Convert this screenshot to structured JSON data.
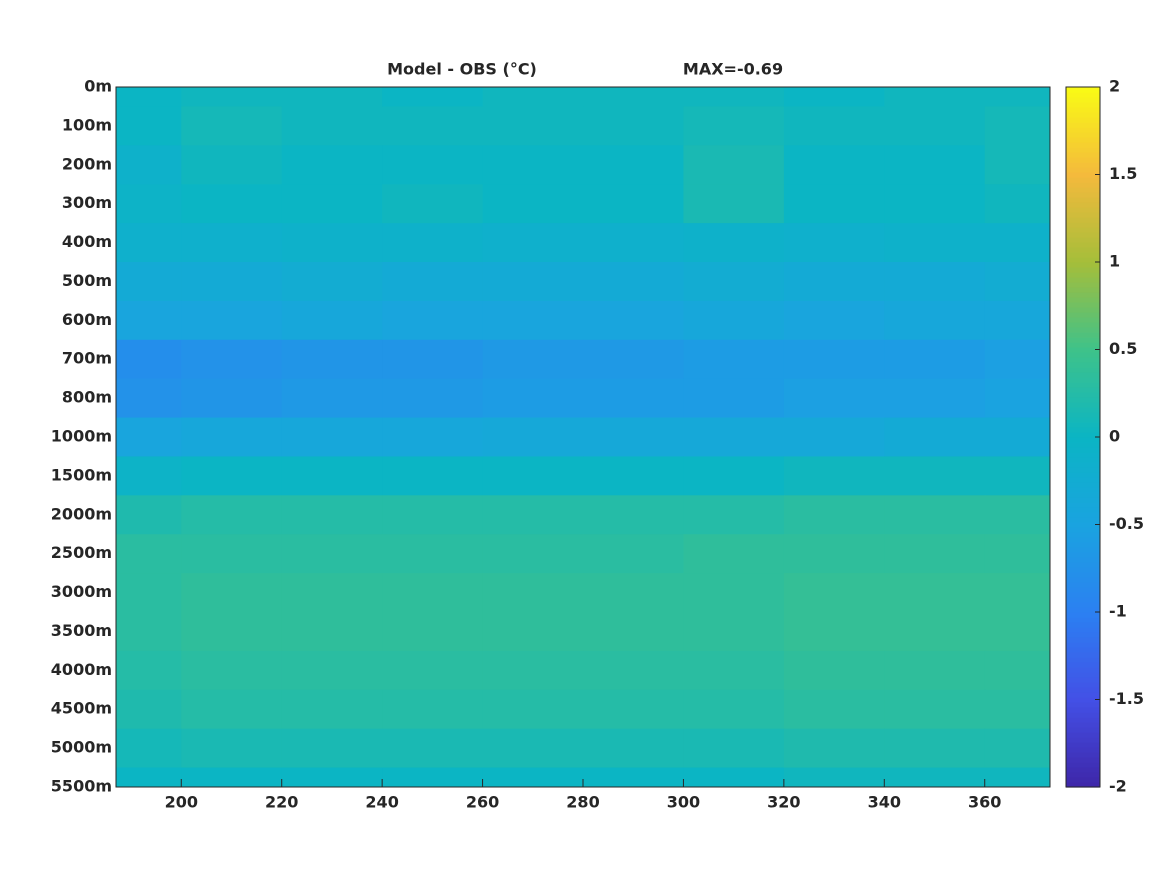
{
  "chart_data": {
    "type": "heatmap",
    "title": "Model - OBS (°C)",
    "annotation": "MAX=-0.69",
    "x": [
      190,
      210,
      230,
      250,
      270,
      290,
      310,
      330,
      350,
      370
    ],
    "xlim": [
      187,
      373
    ],
    "xticks": [
      200,
      220,
      240,
      260,
      280,
      300,
      320,
      340,
      360
    ],
    "categories": [
      "0m",
      "100m",
      "200m",
      "300m",
      "400m",
      "500m",
      "600m",
      "700m",
      "800m",
      "1000m",
      "1500m",
      "2000m",
      "2500m",
      "3000m",
      "3500m",
      "4000m",
      "4500m",
      "5000m",
      "5500m"
    ],
    "values": [
      [
        0.0,
        0.05,
        0.05,
        0.0,
        0.05,
        0.05,
        0.05,
        0.0,
        0.05,
        0.05
      ],
      [
        0.0,
        0.1,
        0.05,
        0.05,
        0.05,
        0.05,
        0.1,
        0.05,
        0.05,
        0.1
      ],
      [
        -0.1,
        0.05,
        0.0,
        0.0,
        0.0,
        0.0,
        0.15,
        0.0,
        0.0,
        0.1
      ],
      [
        -0.05,
        0.0,
        0.0,
        0.05,
        0.0,
        0.0,
        0.15,
        0.0,
        0.0,
        0.05
      ],
      [
        -0.15,
        -0.15,
        -0.1,
        -0.1,
        -0.15,
        -0.15,
        -0.1,
        -0.15,
        -0.1,
        -0.1
      ],
      [
        -0.3,
        -0.3,
        -0.25,
        -0.3,
        -0.3,
        -0.3,
        -0.25,
        -0.3,
        -0.3,
        -0.25
      ],
      [
        -0.45,
        -0.45,
        -0.4,
        -0.45,
        -0.45,
        -0.45,
        -0.4,
        -0.45,
        -0.4,
        -0.4
      ],
      [
        -0.8,
        -0.75,
        -0.7,
        -0.7,
        -0.65,
        -0.65,
        -0.6,
        -0.6,
        -0.6,
        -0.55
      ],
      [
        -0.75,
        -0.7,
        -0.65,
        -0.65,
        -0.6,
        -0.6,
        -0.6,
        -0.55,
        -0.55,
        -0.5
      ],
      [
        -0.45,
        -0.4,
        -0.4,
        -0.4,
        -0.35,
        -0.35,
        -0.35,
        -0.35,
        -0.3,
        -0.3
      ],
      [
        -0.05,
        0.0,
        0.0,
        0.0,
        0.0,
        0.0,
        0.0,
        0.05,
        0.05,
        0.05
      ],
      [
        0.2,
        0.25,
        0.25,
        0.25,
        0.25,
        0.25,
        0.25,
        0.3,
        0.3,
        0.3
      ],
      [
        0.3,
        0.3,
        0.3,
        0.3,
        0.3,
        0.3,
        0.35,
        0.35,
        0.35,
        0.35
      ],
      [
        0.3,
        0.35,
        0.35,
        0.35,
        0.35,
        0.35,
        0.35,
        0.4,
        0.4,
        0.4
      ],
      [
        0.3,
        0.35,
        0.35,
        0.35,
        0.35,
        0.35,
        0.35,
        0.4,
        0.4,
        0.4
      ],
      [
        0.25,
        0.3,
        0.3,
        0.3,
        0.3,
        0.3,
        0.3,
        0.35,
        0.35,
        0.35
      ],
      [
        0.2,
        0.25,
        0.25,
        0.25,
        0.25,
        0.25,
        0.25,
        0.3,
        0.3,
        0.3
      ],
      [
        0.1,
        0.15,
        0.15,
        0.15,
        0.15,
        0.15,
        0.15,
        0.2,
        0.2,
        0.2
      ],
      [
        0.0,
        0.0,
        0.0,
        0.0,
        0.0,
        0.0,
        0.0,
        0.05,
        0.05,
        0.05
      ]
    ],
    "clim": [
      -2,
      2
    ],
    "cticks": [
      -2,
      -1.5,
      -1,
      -0.5,
      0,
      0.5,
      1,
      1.5,
      2
    ],
    "colormap": [
      "#3e26a8",
      "#4350e6",
      "#2b80f2",
      "#1aa3e0",
      "#0bb5c4",
      "#3ec28a",
      "#a5be3a",
      "#f4ba3c",
      "#f9fb15"
    ]
  }
}
